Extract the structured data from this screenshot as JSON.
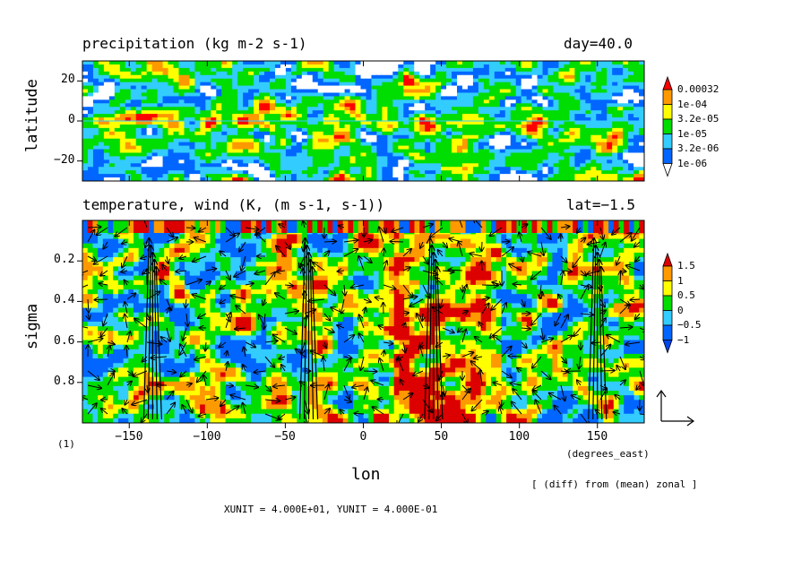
{
  "chart_data": [
    {
      "type": "heatmap",
      "title": "precipitation (kg m-2 s-1)",
      "right_title": "day=40.0",
      "xlabel": "",
      "ylabel": "latitude",
      "xlim": [
        -180,
        180
      ],
      "ylim": [
        -30,
        30
      ],
      "x_ticks": [
        -150,
        -100,
        -50,
        0,
        50,
        100,
        150
      ],
      "y_ticks": [
        20,
        0,
        -20
      ],
      "y_tick_labels": [
        "20",
        "0",
        "−20"
      ],
      "colorbar": {
        "levels": [
          "0.00032",
          "1e-04",
          "3.2e-05",
          "1e-05",
          "3.2e-06",
          "1e-06"
        ],
        "colors": [
          "#ff0000",
          "#ff9900",
          "#ffff00",
          "#00dd00",
          "#33ccff",
          "#0066ff",
          "#ffffff"
        ]
      }
    },
    {
      "type": "heatmap",
      "title": "temperature, wind (K, (m s-1, s-1))",
      "right_title": "lat=−1.5",
      "xlabel": "lon",
      "x_unit_label": "(degrees_east)",
      "ylabel": "sigma",
      "xlim": [
        -180,
        180
      ],
      "ylim": [
        1.0,
        0.0
      ],
      "x_ticks": [
        -150,
        -100,
        -50,
        0,
        50,
        100,
        150
      ],
      "x_tick_labels": [
        "−150",
        "−100",
        "−50",
        "0",
        "50",
        "100",
        "150"
      ],
      "y_ticks": [
        0.2,
        0.4,
        0.6,
        0.8
      ],
      "y_tick_labels": [
        "0.2",
        "0.4",
        "0.6",
        "0.8"
      ],
      "colorbar": {
        "levels": [
          "1.5",
          "1",
          "0.5",
          "0",
          "−0.5",
          "−1"
        ],
        "colors": [
          "#dd0000",
          "#ff9900",
          "#ffff00",
          "#00dd00",
          "#33ccff",
          "#0066ff",
          "#0044ee"
        ]
      },
      "vector_field": true
    }
  ],
  "figure": {
    "panel_marker": "(1)",
    "note": "[ (diff) from (mean) zonal ]",
    "units_line": "XUNIT = 4.000E+01, YUNIT = 4.000E-01"
  }
}
